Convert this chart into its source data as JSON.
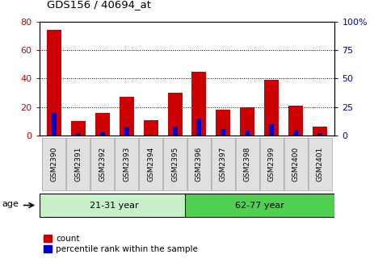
{
  "title": "GDS156 / 40694_at",
  "samples": [
    "GSM2390",
    "GSM2391",
    "GSM2392",
    "GSM2393",
    "GSM2394",
    "GSM2395",
    "GSM2396",
    "GSM2397",
    "GSM2398",
    "GSM2399",
    "GSM2400",
    "GSM2401"
  ],
  "count_values": [
    74,
    10,
    16,
    27,
    11,
    30,
    45,
    18,
    20,
    39,
    21,
    6
  ],
  "percentile_values": [
    20,
    2,
    3,
    7,
    1,
    8,
    15,
    6,
    4,
    10,
    5,
    2
  ],
  "left_ylim": [
    0,
    80
  ],
  "right_ylim": [
    0,
    100
  ],
  "left_yticks": [
    0,
    20,
    40,
    60,
    80
  ],
  "right_yticks": [
    0,
    25,
    50,
    75,
    100
  ],
  "right_yticklabels": [
    "0",
    "25",
    "50",
    "75",
    "100%"
  ],
  "groups": [
    {
      "label": "21-31 year",
      "start": 0,
      "end": 6,
      "color": "#c8f0c8"
    },
    {
      "label": "62-77 year",
      "start": 6,
      "end": 12,
      "color": "#50d050"
    }
  ],
  "age_label": "age",
  "bar_color_red": "#cc0000",
  "bar_color_blue": "#0000cc",
  "grid_color": "#000000",
  "legend_items": [
    "count",
    "percentile rank within the sample"
  ],
  "background_color": "#ffffff",
  "tick_label_color_left": "#cc0000",
  "tick_label_color_right": "#0000cc",
  "bar_width": 0.6,
  "blue_bar_width": 0.2,
  "xtick_box_color": "#e0e0e0",
  "xtick_box_border": "#aaaaaa"
}
